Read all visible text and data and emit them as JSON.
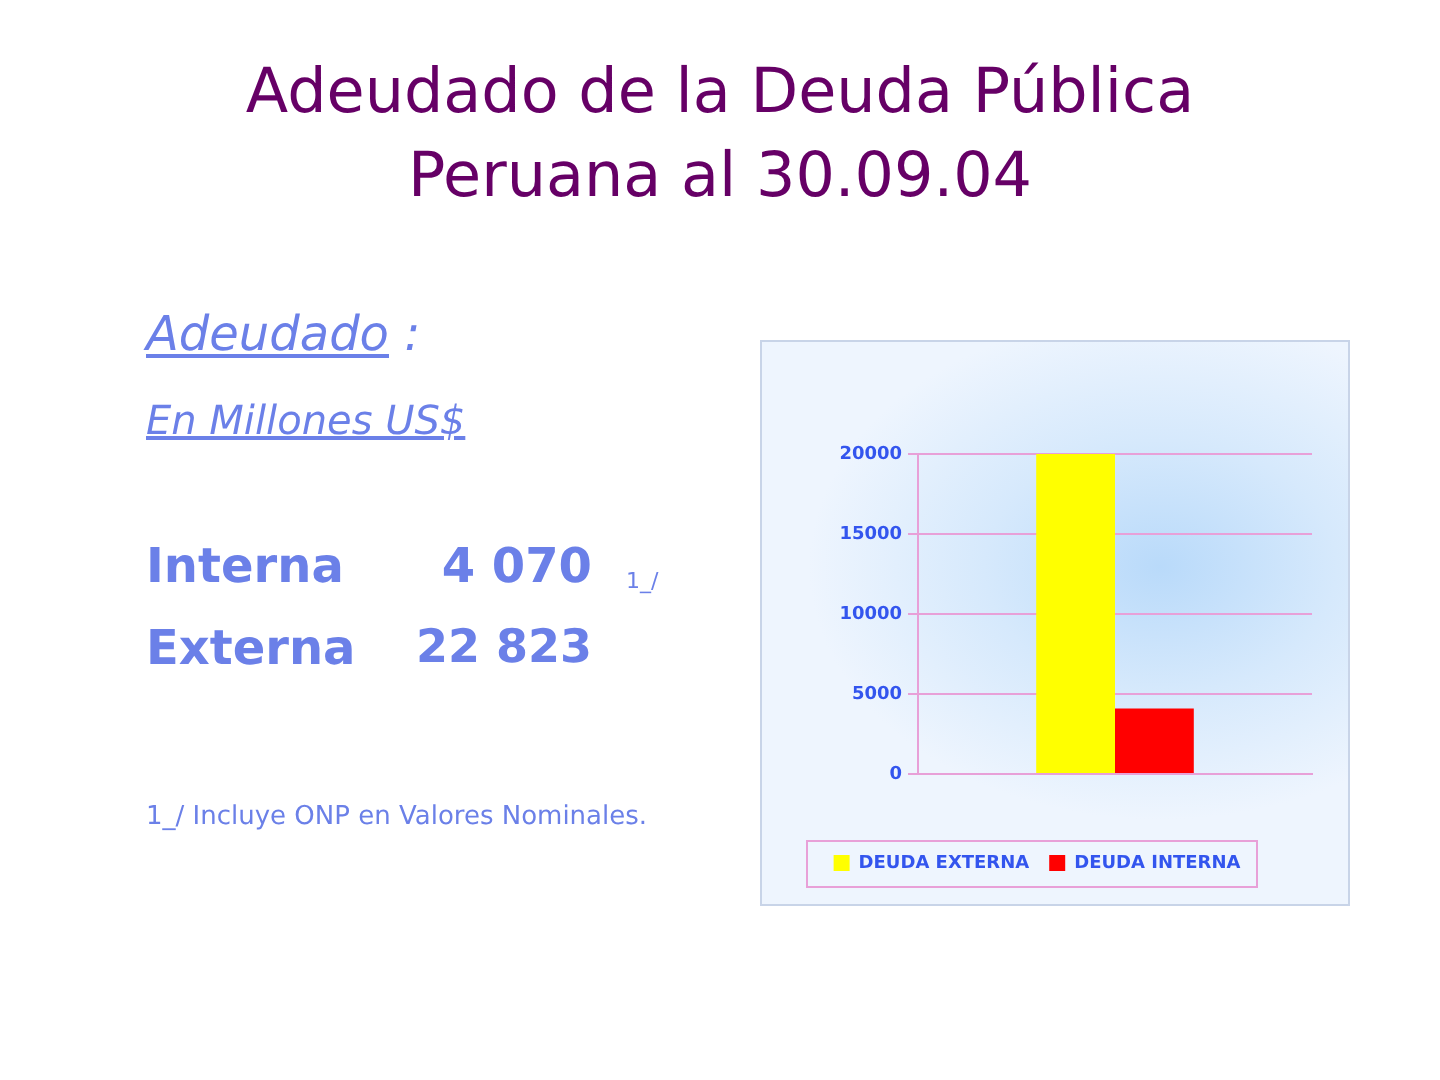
{
  "chart_data": {
    "type": "bar",
    "title": "Adeudado de la Deuda Pública\nPeruana al 30.09.04",
    "annotations": [
      "Adeudado :",
      "En Millones US$",
      "Interna",
      "4 070",
      "1_/",
      "Externa",
      "22 823",
      "1_/ Incluye ONP en Valores Nominales."
    ],
    "categories": [
      null
    ],
    "series": [
      {
        "name": "DEUDA EXTERNA",
        "color": "#ffff00",
        "values": [
          20000
        ]
      },
      {
        "name": "DEUDA INTERNA",
        "color": "#ff0000",
        "values": [
          4100
        ]
      }
    ],
    "ylim": [
      0,
      20000
    ],
    "yticks": [
      0,
      5000,
      10000,
      15000,
      20000
    ],
    "grid": "y",
    "legend": "bottom"
  }
}
